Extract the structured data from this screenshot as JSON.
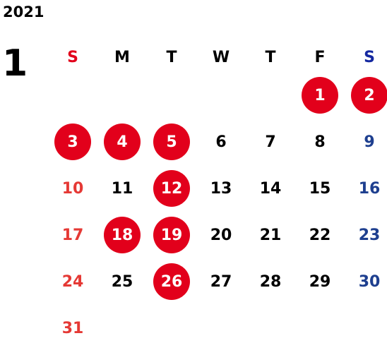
{
  "calendar": {
    "year": "2021",
    "month": "1",
    "weekdays": [
      {
        "label": "S",
        "color": "#e2001b"
      },
      {
        "label": "M",
        "color": "#000000"
      },
      {
        "label": "T",
        "color": "#000000"
      },
      {
        "label": "W",
        "color": "#000000"
      },
      {
        "label": "T",
        "color": "#000000"
      },
      {
        "label": "F",
        "color": "#000000"
      },
      {
        "label": "S",
        "color": "#1428a0"
      }
    ],
    "colors": {
      "sunday": "#e53935",
      "saturday": "#1e3f8f",
      "weekday": "#000000",
      "highlight_bg": "#e2001b",
      "highlight_text": "#ffffff"
    },
    "weeks": [
      [
        null,
        null,
        null,
        null,
        null,
        {
          "day": "1",
          "highlight": true
        },
        {
          "day": "2",
          "highlight": true
        }
      ],
      [
        {
          "day": "3",
          "highlight": true
        },
        {
          "day": "4",
          "highlight": true
        },
        {
          "day": "5",
          "highlight": true
        },
        {
          "day": "6",
          "highlight": false
        },
        {
          "day": "7",
          "highlight": false
        },
        {
          "day": "8",
          "highlight": false
        },
        {
          "day": "9",
          "highlight": false
        }
      ],
      [
        {
          "day": "10",
          "highlight": false
        },
        {
          "day": "11",
          "highlight": false
        },
        {
          "day": "12",
          "highlight": true
        },
        {
          "day": "13",
          "highlight": false
        },
        {
          "day": "14",
          "highlight": false
        },
        {
          "day": "15",
          "highlight": false
        },
        {
          "day": "16",
          "highlight": false
        }
      ],
      [
        {
          "day": "17",
          "highlight": false
        },
        {
          "day": "18",
          "highlight": true
        },
        {
          "day": "19",
          "highlight": true
        },
        {
          "day": "20",
          "highlight": false
        },
        {
          "day": "21",
          "highlight": false
        },
        {
          "day": "22",
          "highlight": false
        },
        {
          "day": "23",
          "highlight": false
        }
      ],
      [
        {
          "day": "24",
          "highlight": false
        },
        {
          "day": "25",
          "highlight": false
        },
        {
          "day": "26",
          "highlight": true
        },
        {
          "day": "27",
          "highlight": false
        },
        {
          "day": "28",
          "highlight": false
        },
        {
          "day": "29",
          "highlight": false
        },
        {
          "day": "30",
          "highlight": false
        }
      ],
      [
        {
          "day": "31",
          "highlight": false
        },
        null,
        null,
        null,
        null,
        null,
        null
      ]
    ]
  }
}
